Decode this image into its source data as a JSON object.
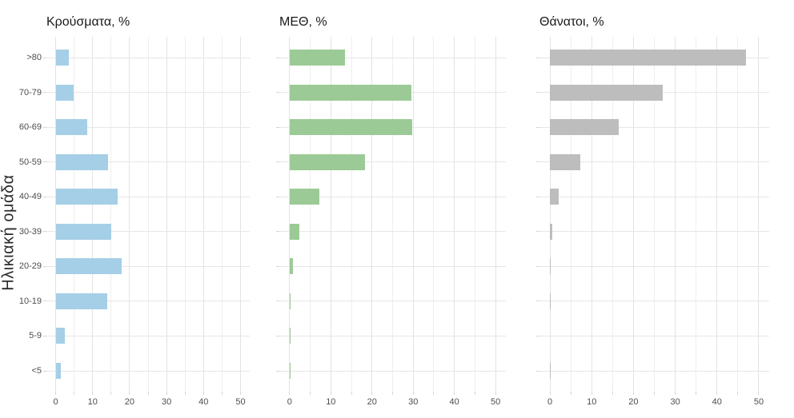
{
  "chart_data": {
    "type": "bar",
    "orientation": "horizontal",
    "faceted": true,
    "title": "",
    "xlabel": "",
    "ylabel": "Ηλικιακή ομάδα",
    "categories": [
      ">80",
      "70-79",
      "60-69",
      "50-59",
      "40-49",
      "30-39",
      "20-29",
      "10-19",
      "5-9",
      "<5"
    ],
    "x_major_ticks": [
      0,
      10,
      20,
      30,
      40,
      50
    ],
    "x_minor_step": 5,
    "xlim": [
      0,
      50
    ],
    "grid": "major and minor vertical + major horizontal, light gray on white",
    "legend_position": "none",
    "series": [
      {
        "name": "Κρούσματα, %",
        "color": "#a5cfe6",
        "values": [
          3.6,
          4.9,
          8.5,
          14.1,
          16.7,
          15.1,
          17.8,
          13.9,
          2.5,
          1.4
        ]
      },
      {
        "name": "ΜΕΘ, %",
        "color": "#9cca96",
        "values": [
          13.4,
          29.5,
          29.8,
          18.3,
          7.2,
          2.3,
          0.9,
          0.2,
          0.15,
          0.2
        ]
      },
      {
        "name": "Θάνατοι, %",
        "color": "#bdbdbd",
        "values": [
          47.0,
          27.0,
          16.4,
          7.3,
          2.1,
          0.6,
          0.15,
          0.15,
          0,
          0.1
        ]
      }
    ]
  },
  "colors": {
    "background": "#ffffff",
    "grid_major": "#e3e3e3",
    "grid_minor": "#efefef",
    "axis_tick": "#d6d6d6",
    "axis_text": "#4d4d4d",
    "title_text": "#1a1a1a"
  }
}
